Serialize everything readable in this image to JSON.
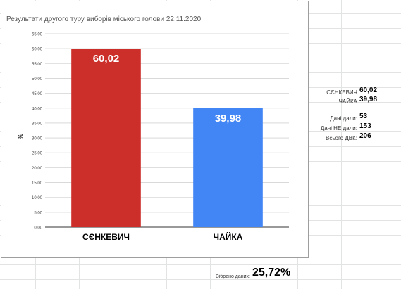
{
  "chart_data": {
    "type": "bar",
    "title": "Результати другого туру виборів міського голови 22.11.2020",
    "ylabel": "%",
    "xlabel": "",
    "categories": [
      "СЄНКЕВИЧ",
      "ЧАЙКА"
    ],
    "values": [
      60.02,
      39.98
    ],
    "value_labels": [
      "60,02",
      "39,98"
    ],
    "colors": [
      "#cc2e2a",
      "#4285f4"
    ],
    "ylim": [
      0,
      65
    ],
    "yticks": [
      0,
      5,
      10,
      15,
      20,
      25,
      30,
      35,
      40,
      45,
      50,
      55,
      60,
      65
    ],
    "ytick_labels": [
      "0,00",
      "5,00",
      "10,00",
      "15,00",
      "20,00",
      "25,00",
      "30,00",
      "35,00",
      "40,00",
      "45,00",
      "50,00",
      "55,00",
      "60,00",
      "65,00"
    ],
    "grid": true,
    "legend": "none"
  },
  "side_panel": {
    "candidates": [
      {
        "label": "СЄНКЕВИЧ",
        "value": "60,02"
      },
      {
        "label": "ЧАЙКА",
        "value": "39,98"
      }
    ],
    "stats": [
      {
        "label": "Дані дали:",
        "value": "53"
      },
      {
        "label": "Дані НЕ дали:",
        "value": "153"
      },
      {
        "label": "Всього ДВК:",
        "value": "206"
      }
    ]
  },
  "collected": {
    "label": "Зібрано даних:",
    "value": "25,72%"
  }
}
